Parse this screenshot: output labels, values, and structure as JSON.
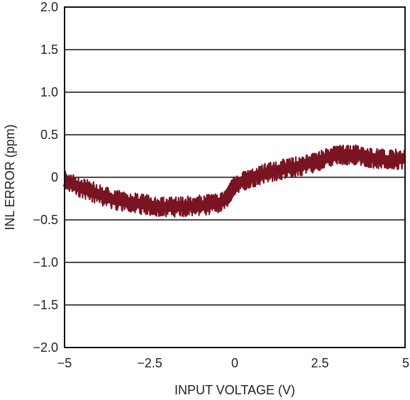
{
  "chart_data": {
    "type": "line",
    "title": "",
    "xlabel": "INPUT VOLTAGE (V)",
    "ylabel": "INL ERROR (ppm)",
    "xlim": [
      -5,
      5
    ],
    "ylim": [
      -2.0,
      2.0
    ],
    "x_ticks": [
      -5,
      -2.5,
      0,
      2.5,
      5
    ],
    "x_tick_labels": [
      "−5",
      "−2.5",
      "0",
      "2.5",
      "5"
    ],
    "y_ticks": [
      2.0,
      1.5,
      1.0,
      0.5,
      0,
      -0.5,
      -1.0,
      -1.5,
      -2.0
    ],
    "y_tick_labels": [
      "2.0",
      "1.5",
      "1.0",
      "0.5",
      "0",
      "−0.5",
      "−1.0",
      "−1.5",
      "−2.0"
    ],
    "grid": "horizontal",
    "legend": "none",
    "series": [
      {
        "color": "#7a1422",
        "noise_band": 0.12,
        "x": [
          -5,
          -4.5,
          -4,
          -3.5,
          -3,
          -2.5,
          -2,
          -1.5,
          -1,
          -0.5,
          -0.25,
          0,
          0.5,
          1,
          1.5,
          2,
          2.5,
          3,
          3.5,
          4,
          4.5,
          5
        ],
        "y": [
          -0.05,
          -0.12,
          -0.2,
          -0.27,
          -0.3,
          -0.33,
          -0.35,
          -0.34,
          -0.33,
          -0.31,
          -0.26,
          -0.08,
          0.0,
          0.06,
          0.1,
          0.14,
          0.2,
          0.26,
          0.27,
          0.23,
          0.2,
          0.22
        ]
      }
    ]
  }
}
